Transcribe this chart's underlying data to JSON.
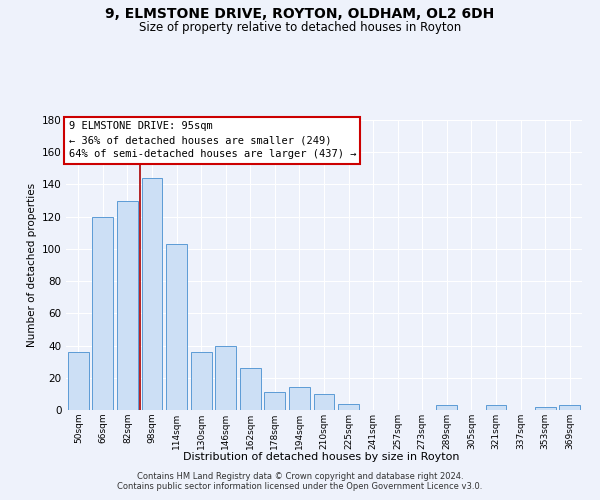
{
  "title": "9, ELMSTONE DRIVE, ROYTON, OLDHAM, OL2 6DH",
  "subtitle": "Size of property relative to detached houses in Royton",
  "xlabel": "Distribution of detached houses by size in Royton",
  "ylabel": "Number of detached properties",
  "bar_labels": [
    "50sqm",
    "66sqm",
    "82sqm",
    "98sqm",
    "114sqm",
    "130sqm",
    "146sqm",
    "162sqm",
    "178sqm",
    "194sqm",
    "210sqm",
    "225sqm",
    "241sqm",
    "257sqm",
    "273sqm",
    "289sqm",
    "305sqm",
    "321sqm",
    "337sqm",
    "353sqm",
    "369sqm"
  ],
  "bar_values": [
    36,
    120,
    130,
    144,
    103,
    36,
    40,
    26,
    11,
    14,
    10,
    4,
    0,
    0,
    0,
    3,
    0,
    3,
    0,
    2,
    3
  ],
  "bar_color": "#ccdff5",
  "bar_edge_color": "#5b9bd5",
  "highlight_line_color": "#aa0000",
  "annotation_line1": "9 ELMSTONE DRIVE: 95sqm",
  "annotation_line2": "← 36% of detached houses are smaller (249)",
  "annotation_line3": "64% of semi-detached houses are larger (437) →",
  "ylim": [
    0,
    180
  ],
  "yticks": [
    0,
    20,
    40,
    60,
    80,
    100,
    120,
    140,
    160,
    180
  ],
  "bg_color": "#eef2fb",
  "plot_bg_color": "#eef2fb",
  "grid_color": "#ffffff",
  "footnote1": "Contains HM Land Registry data © Crown copyright and database right 2024.",
  "footnote2": "Contains public sector information licensed under the Open Government Licence v3.0."
}
